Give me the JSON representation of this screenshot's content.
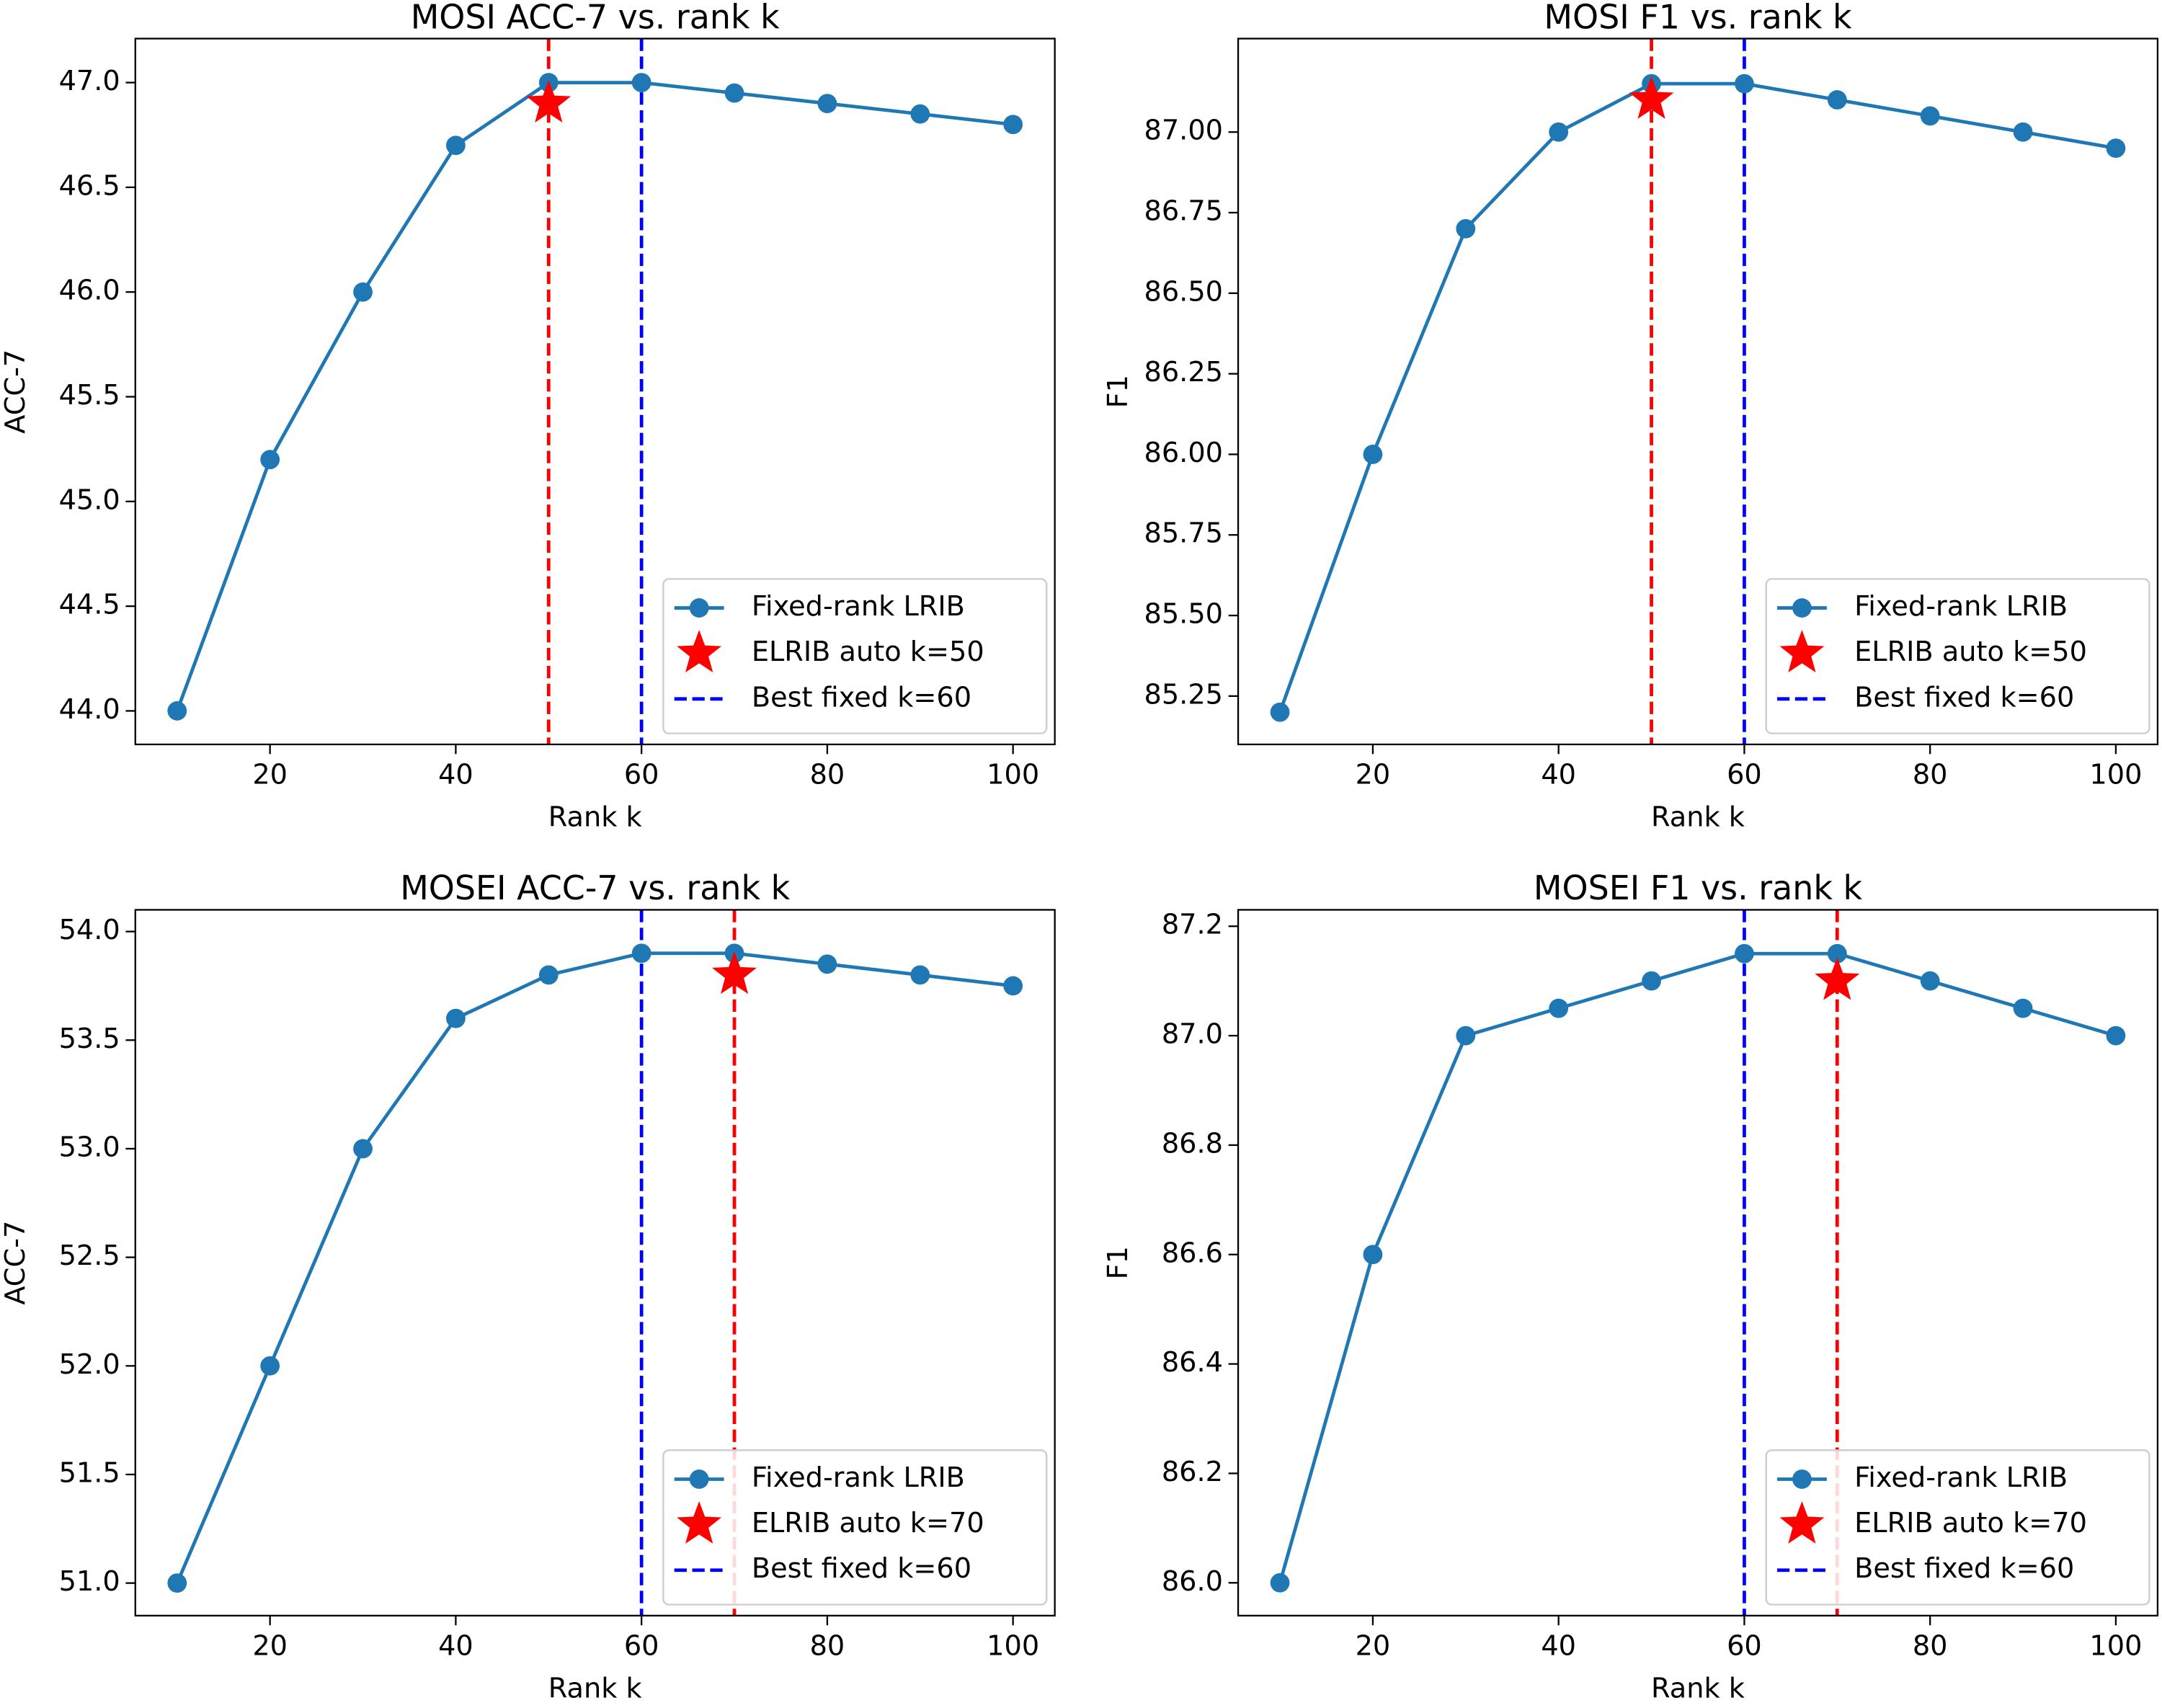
{
  "chart_data": [
    {
      "type": "line",
      "title": "MOSI ACC-7 vs. rank k",
      "x_label": "Rank k",
      "y_label": "ACC-7",
      "x": [
        10,
        20,
        30,
        40,
        50,
        60,
        70,
        80,
        90,
        100
      ],
      "series": [
        {
          "name": "Fixed-rank LRIB",
          "color": "#1f77b4",
          "marker": "circle",
          "values": [
            44.0,
            45.2,
            46.0,
            46.7,
            47.0,
            47.0,
            46.95,
            46.9,
            46.85,
            46.8
          ]
        },
        {
          "name": "ELRIB auto k=50",
          "color": "#ff0000",
          "marker": "star",
          "x": [
            50
          ],
          "values": [
            46.9
          ],
          "vline": true
        },
        {
          "name": "Best fixed k=60",
          "color": "#0000ff",
          "marker": "none",
          "x": [
            60
          ],
          "vline": true
        }
      ],
      "xlim": [
        5.5,
        104.5
      ],
      "xticks": [
        20,
        40,
        60,
        80,
        100
      ],
      "ylim": [
        43.84,
        47.21
      ],
      "yticks": [
        {
          "value": 44,
          "label": "44.0"
        },
        44.5,
        {
          "value": 45,
          "label": "45.0"
        },
        45.5,
        {
          "value": 46,
          "label": "46.0"
        },
        46.5,
        {
          "value": 47,
          "label": "47.0"
        }
      ],
      "legend": "lower right"
    },
    {
      "type": "line",
      "title": "MOSI F1 vs. rank k",
      "x_label": "Rank k",
      "y_label": "F1",
      "x": [
        10,
        20,
        30,
        40,
        50,
        60,
        70,
        80,
        90,
        100
      ],
      "series": [
        {
          "name": "Fixed-rank LRIB",
          "color": "#1f77b4",
          "marker": "circle",
          "values": [
            85.2,
            86.0,
            86.7,
            87.0,
            87.15,
            87.15,
            87.1,
            87.05,
            87.0,
            86.95
          ]
        },
        {
          "name": "ELRIB auto k=50",
          "color": "#ff0000",
          "marker": "star",
          "x": [
            50
          ],
          "values": [
            87.1
          ],
          "vline": true
        },
        {
          "name": "Best fixed k=60",
          "color": "#0000ff",
          "marker": "none",
          "x": [
            60
          ],
          "vline": true
        }
      ],
      "xlim": [
        5.5,
        104.5
      ],
      "xticks": [
        20,
        40,
        60,
        80,
        100
      ],
      "ylim": [
        85.1,
        87.29
      ],
      "yticks": [
        85.25,
        {
          "value": 85.5,
          "label": "85.50"
        },
        85.75,
        {
          "value": 86,
          "label": "86.00"
        },
        86.25,
        {
          "value": 86.5,
          "label": "86.50"
        },
        86.75,
        {
          "value": 87,
          "label": "87.00"
        }
      ],
      "legend": "lower right"
    },
    {
      "type": "line",
      "title": "MOSEI ACC-7 vs. rank k",
      "x_label": "Rank k",
      "y_label": "ACC-7",
      "x": [
        10,
        20,
        30,
        40,
        50,
        60,
        70,
        80,
        90,
        100
      ],
      "series": [
        {
          "name": "Fixed-rank LRIB",
          "color": "#1f77b4",
          "marker": "circle",
          "values": [
            51.0,
            52.0,
            53.0,
            53.6,
            53.8,
            53.9,
            53.9,
            53.85,
            53.8,
            53.75
          ]
        },
        {
          "name": "ELRIB auto k=70",
          "color": "#ff0000",
          "marker": "star",
          "x": [
            70
          ],
          "values": [
            53.8
          ],
          "vline": true
        },
        {
          "name": "Best fixed k=60",
          "color": "#0000ff",
          "marker": "none",
          "x": [
            60
          ],
          "vline": true
        }
      ],
      "xlim": [
        5.5,
        104.5
      ],
      "xticks": [
        20,
        40,
        60,
        80,
        100
      ],
      "ylim": [
        50.85,
        54.1
      ],
      "yticks": [
        {
          "value": 51,
          "label": "51.0"
        },
        51.5,
        {
          "value": 52,
          "label": "52.0"
        },
        52.5,
        {
          "value": 53,
          "label": "53.0"
        },
        53.5,
        {
          "value": 54,
          "label": "54.0"
        }
      ],
      "legend": "lower right"
    },
    {
      "type": "line",
      "title": "MOSEI F1 vs. rank k",
      "x_label": "Rank k",
      "y_label": "F1",
      "x": [
        10,
        20,
        30,
        40,
        50,
        60,
        70,
        80,
        90,
        100
      ],
      "series": [
        {
          "name": "Fixed-rank LRIB",
          "color": "#1f77b4",
          "marker": "circle",
          "values": [
            86.0,
            86.6,
            87.0,
            87.05,
            87.1,
            87.15,
            87.15,
            87.1,
            87.05,
            87.0
          ]
        },
        {
          "name": "ELRIB auto k=70",
          "color": "#ff0000",
          "marker": "star",
          "x": [
            70
          ],
          "values": [
            87.1
          ],
          "vline": true
        },
        {
          "name": "Best fixed k=60",
          "color": "#0000ff",
          "marker": "none",
          "x": [
            60
          ],
          "vline": true
        }
      ],
      "xlim": [
        5.5,
        104.5
      ],
      "xticks": [
        20,
        40,
        60,
        80,
        100
      ],
      "ylim": [
        85.94,
        87.23
      ],
      "yticks": [
        {
          "value": 86,
          "label": "86.0"
        },
        86.2,
        86.4,
        86.6,
        86.8,
        {
          "value": 87,
          "label": "87.0"
        },
        87.2
      ],
      "legend": "lower right"
    }
  ]
}
